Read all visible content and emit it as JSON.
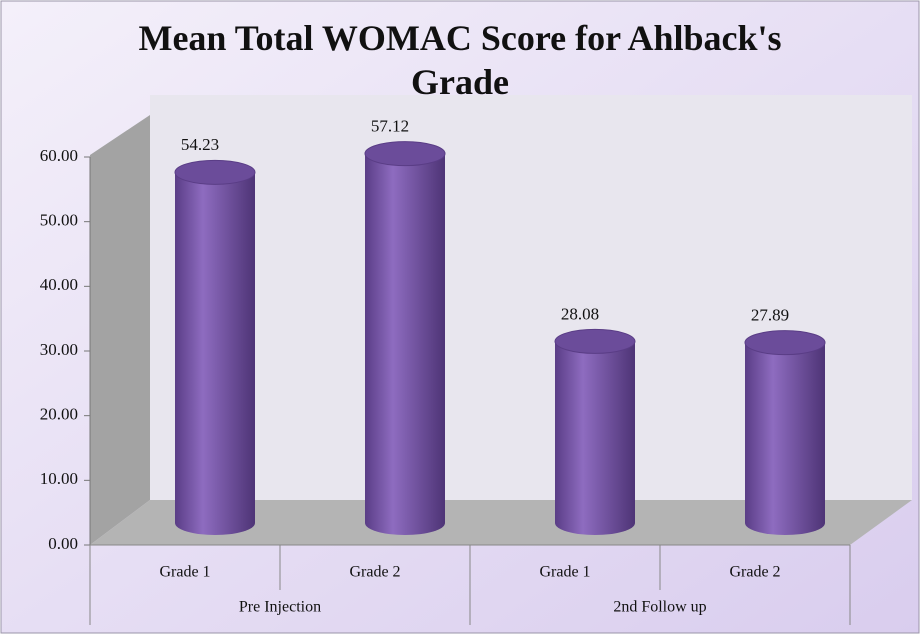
{
  "chart_data": {
    "type": "bar3d",
    "title": "Mean Total WOMAC Score for Ahlback's Grade",
    "categories": [
      "Grade 1",
      "Grade 2",
      "Grade 1",
      "Grade 2"
    ],
    "groups": [
      "Pre Injection",
      "2nd Follow up"
    ],
    "values": [
      54.23,
      57.12,
      28.08,
      27.89
    ],
    "color": "#7b5aa8",
    "ylim": [
      0,
      60
    ],
    "yticks": [
      {
        "value": 0,
        "label": "0.00"
      },
      {
        "value": 10,
        "label": "10.00"
      },
      {
        "value": 20,
        "label": "20.00"
      },
      {
        "value": 30,
        "label": "30.00"
      },
      {
        "value": 40,
        "label": "40.00"
      },
      {
        "value": 50,
        "label": "50.00"
      },
      {
        "value": 60,
        "label": "60.00"
      }
    ]
  }
}
